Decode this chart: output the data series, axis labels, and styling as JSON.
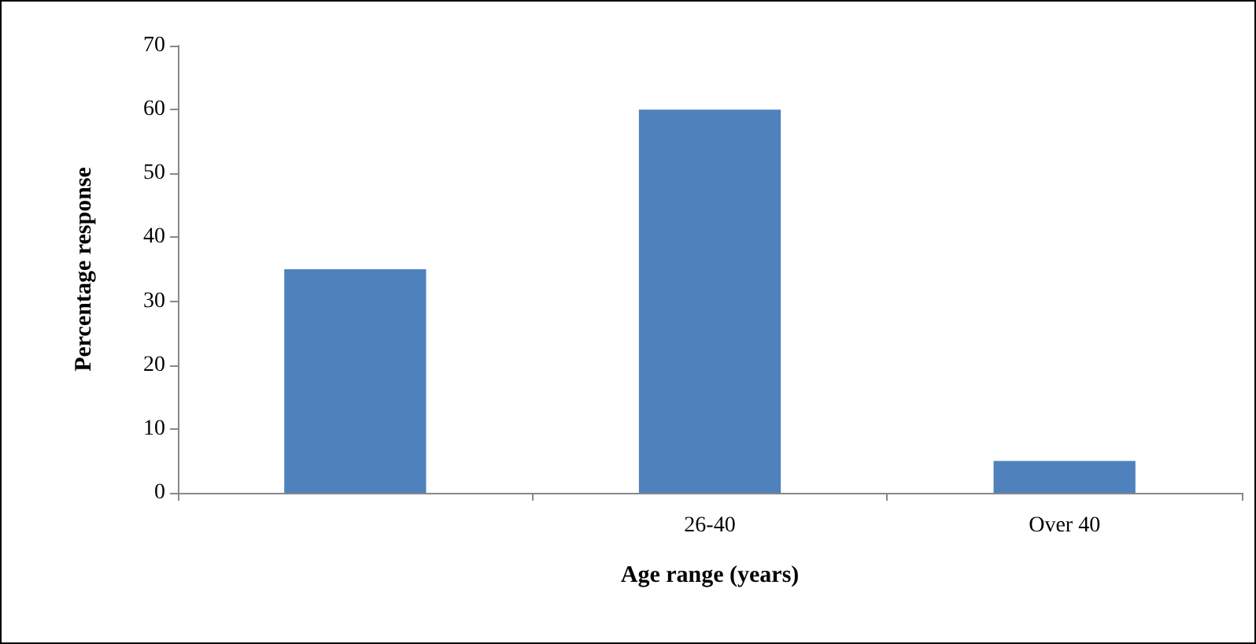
{
  "chart_data": {
    "type": "bar",
    "xlabel": "Age range (years)",
    "ylabel": "Percentage response",
    "categories": [
      null,
      "26-40",
      "Over 40"
    ],
    "values": [
      35,
      60,
      5
    ],
    "color": "#4f81bd",
    "ylim": [
      0,
      70
    ],
    "yticks": [
      0,
      10,
      20,
      30,
      40,
      50,
      60,
      70
    ],
    "grid": false
  }
}
